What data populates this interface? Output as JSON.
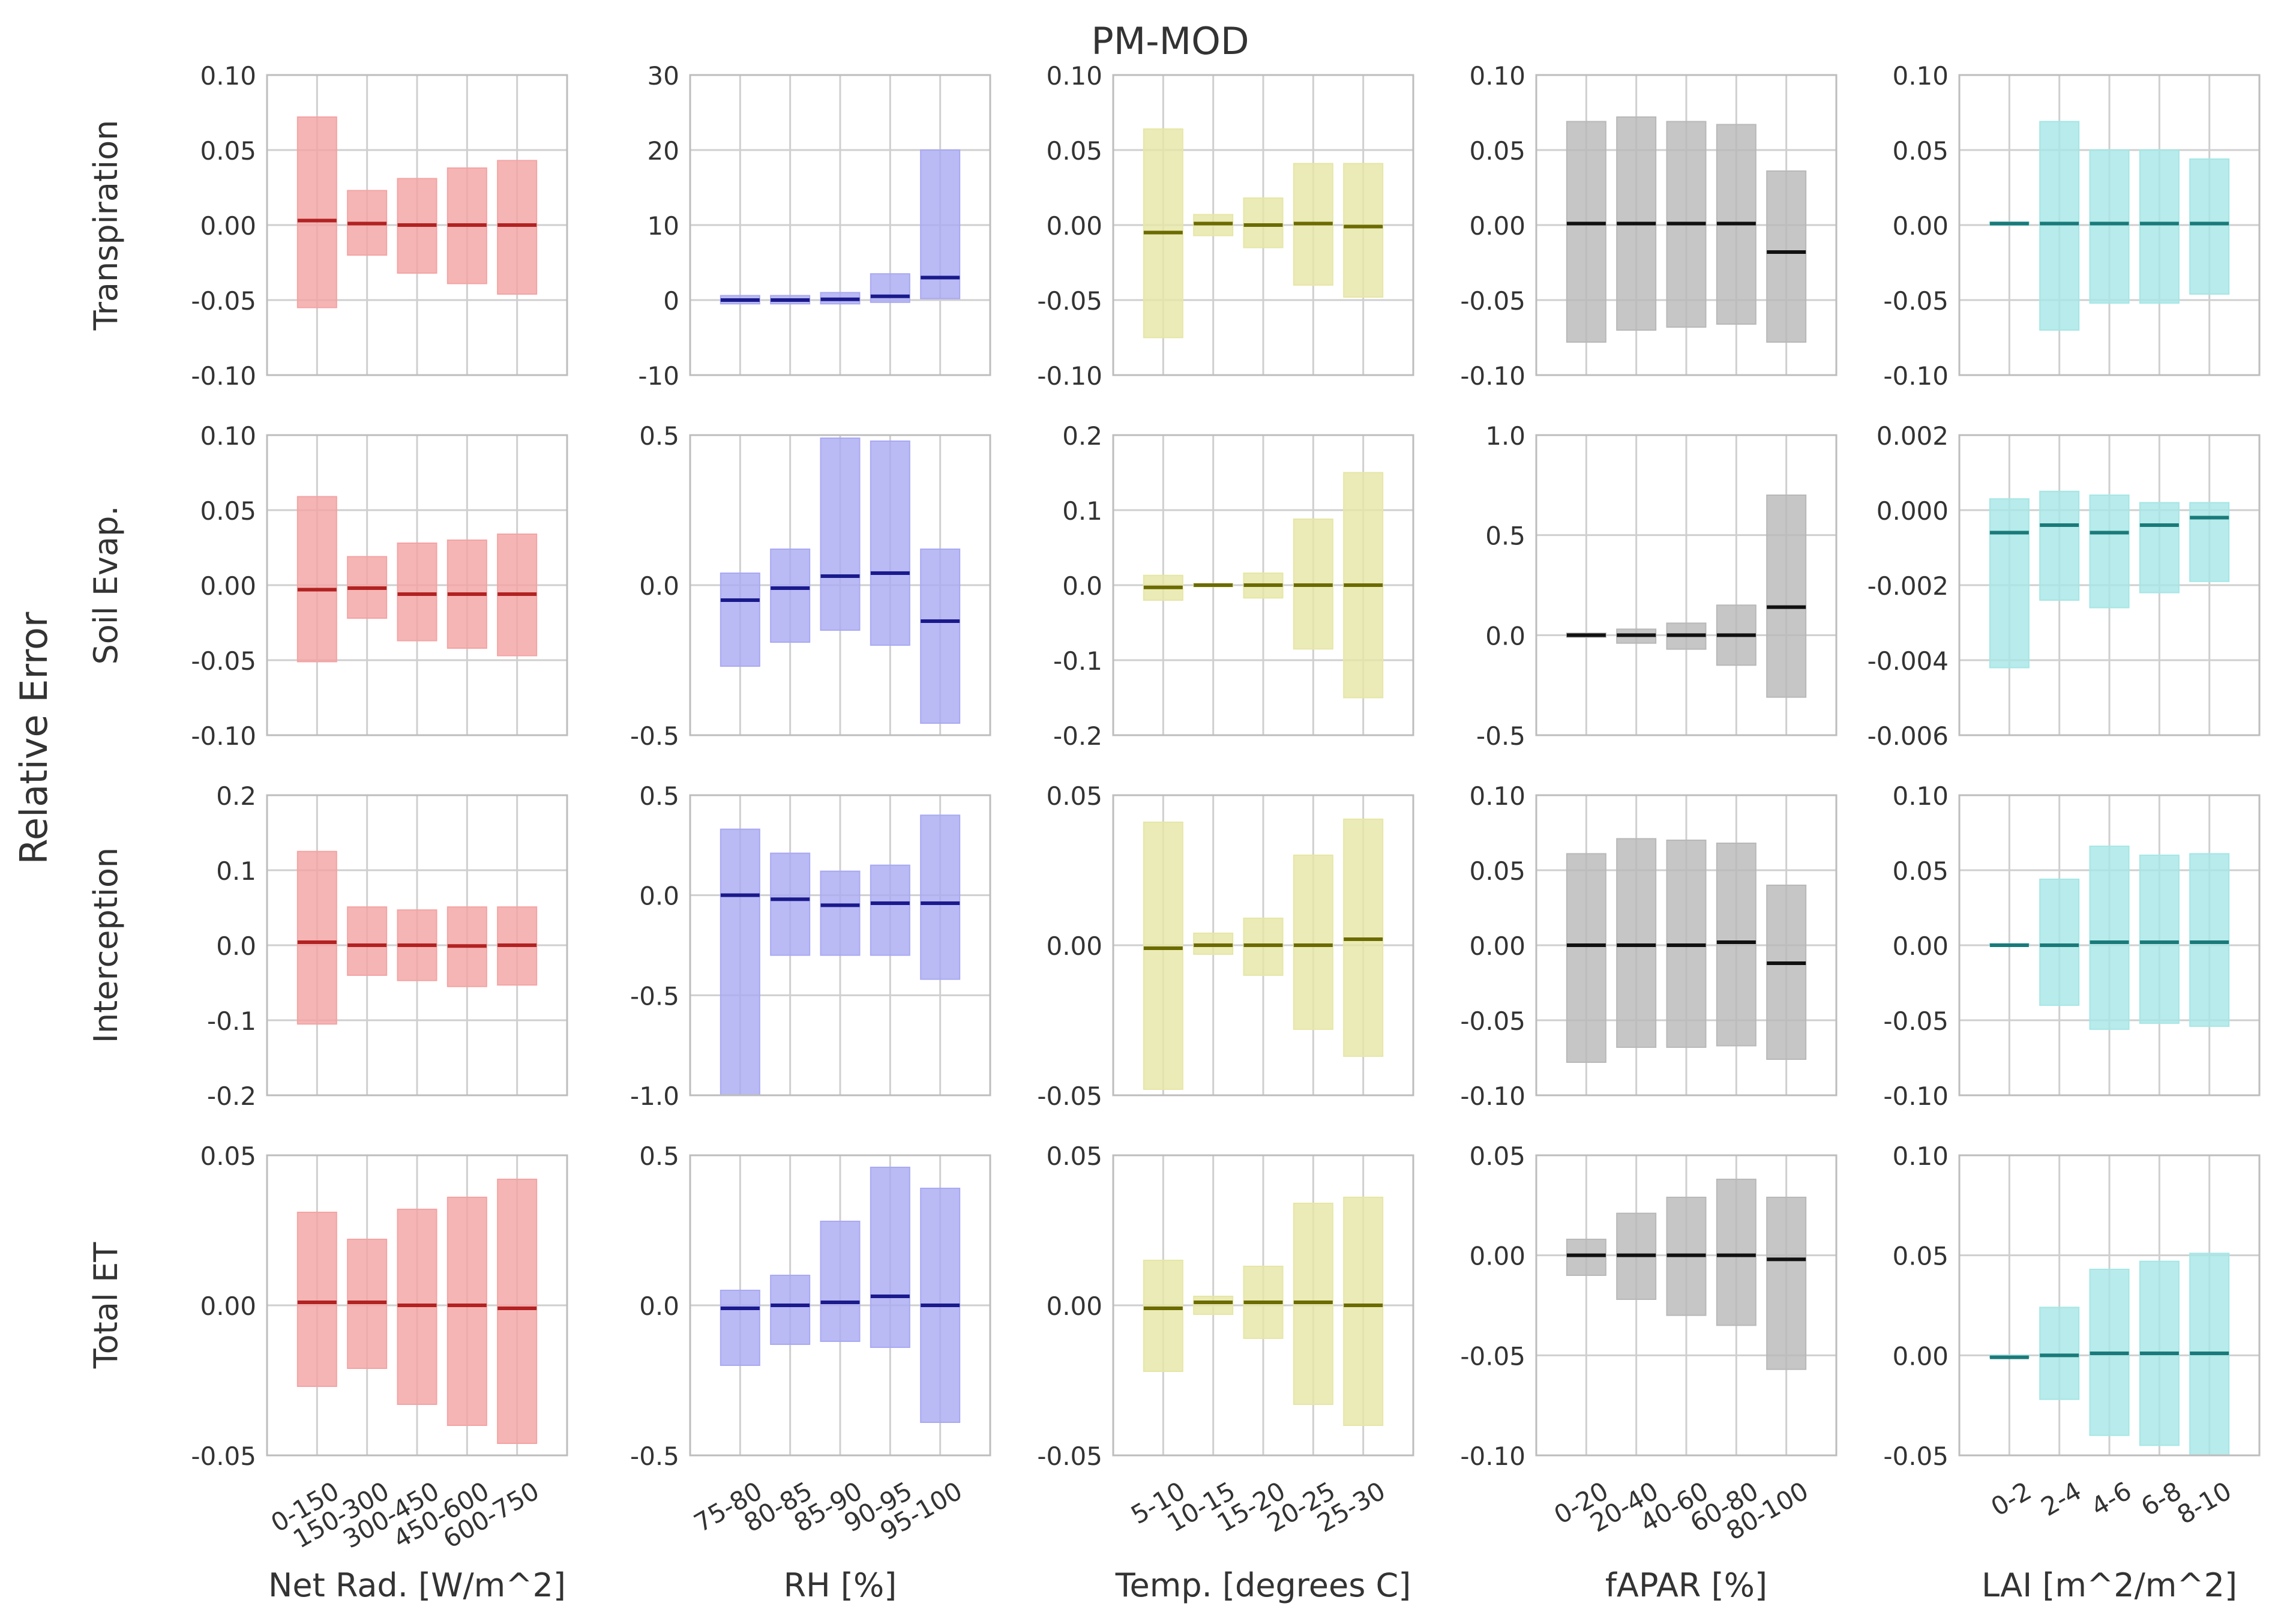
{
  "title": "PM-MOD",
  "ylabel": "Relative Error",
  "rows": [
    "Transpiration",
    "Soil Evap.",
    "Interception",
    "Total ET"
  ],
  "columns": [
    {
      "xlabel": "Net Rad. [W/m^2]",
      "categories": [
        "0-150",
        "150-300",
        "300-450",
        "450-600",
        "600-750"
      ],
      "color": "#f4a3a3",
      "median_color": "#b22222"
    },
    {
      "xlabel": "RH [%]",
      "categories": [
        "75-80",
        "80-85",
        "85-90",
        "90-95",
        "95-100"
      ],
      "color": "#a9a9f2",
      "median_color": "#1a1a8c"
    },
    {
      "xlabel": "Temp. [degrees C]",
      "categories": [
        "5-10",
        "10-15",
        "15-20",
        "20-25",
        "25-30"
      ],
      "color": "#e6e6a6",
      "median_color": "#6b6b00"
    },
    {
      "xlabel": "fAPAR [%]",
      "categories": [
        "0-20",
        "20-40",
        "40-60",
        "60-80",
        "80-100"
      ],
      "color": "#b8b8b8",
      "median_color": "#111111"
    },
    {
      "xlabel": "LAI [m^2/m^2]",
      "categories": [
        "0-2",
        "2-4",
        "4-6",
        "6-8",
        "8-10"
      ],
      "color": "#a6e6e6",
      "median_color": "#1a7a7a"
    }
  ],
  "chart_data": [
    {
      "row": "Transpiration",
      "column": "Net Rad. [W/m^2]",
      "type": "bar",
      "categories": [
        "0-150",
        "150-300",
        "300-450",
        "450-600",
        "600-750"
      ],
      "ylim": [
        -0.1,
        0.1
      ],
      "yticks": [
        -0.1,
        -0.05,
        0,
        0.05,
        0.1
      ],
      "ytick_labels": [
        "-0.10",
        "-0.05",
        "0.00",
        "0.05",
        "0.10"
      ],
      "low": [
        -0.055,
        -0.02,
        -0.032,
        -0.039,
        -0.046
      ],
      "high": [
        0.072,
        0.023,
        0.031,
        0.038,
        0.043
      ],
      "median": [
        0.003,
        0.001,
        0.0,
        0.0,
        0.0
      ]
    },
    {
      "row": "Transpiration",
      "column": "RH [%]",
      "type": "bar",
      "categories": [
        "75-80",
        "80-85",
        "85-90",
        "90-95",
        "95-100"
      ],
      "ylim": [
        -10,
        30
      ],
      "yticks": [
        -10,
        0,
        10,
        20,
        30
      ],
      "ytick_labels": [
        "-10",
        "0",
        "10",
        "20",
        "30"
      ],
      "low": [
        -0.5,
        -0.5,
        -0.5,
        -0.3,
        0.2
      ],
      "high": [
        0.6,
        0.6,
        1.0,
        3.5,
        20.0
      ],
      "median": [
        0.0,
        0.0,
        0.1,
        0.5,
        3.0
      ]
    },
    {
      "row": "Transpiration",
      "column": "Temp. [degrees C]",
      "type": "bar",
      "categories": [
        "5-10",
        "10-15",
        "15-20",
        "20-25",
        "25-30"
      ],
      "ylim": [
        -0.1,
        0.1
      ],
      "yticks": [
        -0.1,
        -0.05,
        0,
        0.05,
        0.1
      ],
      "ytick_labels": [
        "-0.10",
        "-0.05",
        "0.00",
        "0.05",
        "0.10"
      ],
      "low": [
        -0.075,
        -0.007,
        -0.015,
        -0.04,
        -0.048
      ],
      "high": [
        0.064,
        0.007,
        0.018,
        0.041,
        0.041
      ],
      "median": [
        -0.005,
        0.001,
        0.0,
        0.001,
        -0.001
      ]
    },
    {
      "row": "Transpiration",
      "column": "fAPAR [%]",
      "type": "bar",
      "categories": [
        "0-20",
        "20-40",
        "40-60",
        "60-80",
        "80-100"
      ],
      "ylim": [
        -0.1,
        0.1
      ],
      "yticks": [
        -0.1,
        -0.05,
        0,
        0.05,
        0.1
      ],
      "ytick_labels": [
        "-0.10",
        "-0.05",
        "0.00",
        "0.05",
        "0.10"
      ],
      "low": [
        -0.078,
        -0.07,
        -0.068,
        -0.066,
        -0.078
      ],
      "high": [
        0.069,
        0.072,
        0.069,
        0.067,
        0.036
      ],
      "median": [
        0.001,
        0.001,
        0.001,
        0.001,
        -0.018
      ]
    },
    {
      "row": "Transpiration",
      "column": "LAI [m^2/m^2]",
      "type": "bar",
      "categories": [
        "0-2",
        "2-4",
        "4-6",
        "6-8",
        "8-10"
      ],
      "ylim": [
        -0.1,
        0.1
      ],
      "yticks": [
        -0.1,
        -0.05,
        0,
        0.05,
        0.1
      ],
      "ytick_labels": [
        "-0.10",
        "-0.05",
        "0.00",
        "0.05",
        "0.10"
      ],
      "low": [
        0.0,
        -0.07,
        -0.052,
        -0.052,
        -0.046
      ],
      "high": [
        0.002,
        0.069,
        0.05,
        0.05,
        0.044
      ],
      "median": [
        0.001,
        0.001,
        0.001,
        0.001,
        0.001
      ]
    },
    {
      "row": "Soil Evap.",
      "column": "Net Rad. [W/m^2]",
      "type": "bar",
      "categories": [
        "0-150",
        "150-300",
        "300-450",
        "450-600",
        "600-750"
      ],
      "ylim": [
        -0.1,
        0.1
      ],
      "yticks": [
        -0.1,
        -0.05,
        0,
        0.05,
        0.1
      ],
      "ytick_labels": [
        "-0.10",
        "-0.05",
        "0.00",
        "0.05",
        "0.10"
      ],
      "low": [
        -0.051,
        -0.022,
        -0.037,
        -0.042,
        -0.047
      ],
      "high": [
        0.059,
        0.019,
        0.028,
        0.03,
        0.034
      ],
      "median": [
        -0.003,
        -0.002,
        -0.006,
        -0.006,
        -0.006
      ]
    },
    {
      "row": "Soil Evap.",
      "column": "RH [%]",
      "type": "bar",
      "categories": [
        "75-80",
        "80-85",
        "85-90",
        "90-95",
        "95-100"
      ],
      "ylim": [
        -0.5,
        0.5
      ],
      "yticks": [
        -0.5,
        0,
        0.5
      ],
      "ytick_labels": [
        "-0.5",
        "0.0",
        "0.5"
      ],
      "low": [
        -0.27,
        -0.19,
        -0.15,
        -0.2,
        -0.46
      ],
      "high": [
        0.04,
        0.12,
        0.49,
        0.48,
        0.12
      ],
      "median": [
        -0.05,
        -0.01,
        0.03,
        0.04,
        -0.12
      ]
    },
    {
      "row": "Soil Evap.",
      "column": "Temp. [degrees C]",
      "type": "bar",
      "categories": [
        "5-10",
        "10-15",
        "15-20",
        "20-25",
        "25-30"
      ],
      "ylim": [
        -0.2,
        0.2
      ],
      "yticks": [
        -0.2,
        -0.1,
        0,
        0.1,
        0.2
      ],
      "ytick_labels": [
        "-0.2",
        "-0.1",
        "0.0",
        "0.1",
        "0.2"
      ],
      "low": [
        -0.02,
        -0.002,
        -0.017,
        -0.085,
        -0.15
      ],
      "high": [
        0.013,
        0.002,
        0.016,
        0.088,
        0.15
      ],
      "median": [
        -0.003,
        0.0,
        0.0,
        0.0,
        0.0
      ]
    },
    {
      "row": "Soil Evap.",
      "column": "fAPAR [%]",
      "type": "bar",
      "categories": [
        "0-20",
        "20-40",
        "40-60",
        "60-80",
        "80-100"
      ],
      "ylim": [
        -0.5,
        1.0
      ],
      "yticks": [
        -0.5,
        0,
        0.5,
        1.0
      ],
      "ytick_labels": [
        "-0.5",
        "0.0",
        "0.5",
        "1.0"
      ],
      "low": [
        -0.01,
        -0.04,
        -0.07,
        -0.15,
        -0.31
      ],
      "high": [
        0.01,
        0.03,
        0.06,
        0.15,
        0.7
      ],
      "median": [
        0.0,
        0.0,
        0.0,
        0.0,
        0.14
      ]
    },
    {
      "row": "Soil Evap.",
      "column": "LAI [m^2/m^2]",
      "type": "bar",
      "categories": [
        "0-2",
        "2-4",
        "4-6",
        "6-8",
        "8-10"
      ],
      "ylim": [
        -0.006,
        0.002
      ],
      "yticks": [
        -0.006,
        -0.004,
        -0.002,
        0,
        0.002
      ],
      "ytick_labels": [
        "-0.006",
        "-0.004",
        "-0.002",
        "0.000",
        "0.002"
      ],
      "low": [
        -0.0042,
        -0.0024,
        -0.0026,
        -0.0022,
        -0.0019
      ],
      "high": [
        0.0003,
        0.0005,
        0.0004,
        0.0002,
        0.0002
      ],
      "median": [
        -0.0006,
        -0.0004,
        -0.0006,
        -0.0004,
        -0.0002
      ]
    },
    {
      "row": "Interception",
      "column": "Net Rad. [W/m^2]",
      "type": "bar",
      "categories": [
        "0-150",
        "150-300",
        "300-450",
        "450-600",
        "600-750"
      ],
      "ylim": [
        -0.2,
        0.2
      ],
      "yticks": [
        -0.2,
        -0.1,
        0,
        0.1,
        0.2
      ],
      "ytick_labels": [
        "-0.2",
        "-0.1",
        "0.0",
        "0.1",
        "0.2"
      ],
      "low": [
        -0.105,
        -0.04,
        -0.047,
        -0.055,
        -0.053
      ],
      "high": [
        0.125,
        0.051,
        0.047,
        0.051,
        0.051
      ],
      "median": [
        0.004,
        0.0,
        0.0,
        -0.001,
        0.0
      ]
    },
    {
      "row": "Interception",
      "column": "RH [%]",
      "type": "bar",
      "categories": [
        "75-80",
        "80-85",
        "85-90",
        "90-95",
        "95-100"
      ],
      "ylim": [
        -1.0,
        0.5
      ],
      "yticks": [
        -1.0,
        -0.5,
        0,
        0.5
      ],
      "ytick_labels": [
        "-1.0",
        "-0.5",
        "0.0",
        "0.5"
      ],
      "low": [
        -1.0,
        -0.3,
        -0.3,
        -0.3,
        -0.42
      ],
      "high": [
        0.33,
        0.21,
        0.12,
        0.15,
        0.4
      ],
      "median": [
        0.0,
        -0.02,
        -0.05,
        -0.04,
        -0.04
      ]
    },
    {
      "row": "Interception",
      "column": "Temp. [degrees C]",
      "type": "bar",
      "categories": [
        "5-10",
        "10-15",
        "15-20",
        "20-25",
        "25-30"
      ],
      "ylim": [
        -0.05,
        0.05
      ],
      "yticks": [
        -0.05,
        0,
        0.05
      ],
      "ytick_labels": [
        "-0.05",
        "0.00",
        "0.05"
      ],
      "low": [
        -0.048,
        -0.003,
        -0.01,
        -0.028,
        -0.037
      ],
      "high": [
        0.041,
        0.004,
        0.009,
        0.03,
        0.042
      ],
      "median": [
        -0.001,
        0.0,
        0.0,
        0.0,
        0.002
      ]
    },
    {
      "row": "Interception",
      "column": "fAPAR [%]",
      "type": "bar",
      "categories": [
        "0-20",
        "20-40",
        "40-60",
        "60-80",
        "80-100"
      ],
      "ylim": [
        -0.1,
        0.1
      ],
      "yticks": [
        -0.1,
        -0.05,
        0,
        0.05,
        0.1
      ],
      "ytick_labels": [
        "-0.10",
        "-0.05",
        "0.00",
        "0.05",
        "0.10"
      ],
      "low": [
        -0.078,
        -0.068,
        -0.068,
        -0.067,
        -0.076
      ],
      "high": [
        0.061,
        0.071,
        0.07,
        0.068,
        0.04
      ],
      "median": [
        0.0,
        0.0,
        0.0,
        0.002,
        -0.012
      ]
    },
    {
      "row": "Interception",
      "column": "LAI [m^2/m^2]",
      "type": "bar",
      "categories": [
        "0-2",
        "2-4",
        "4-6",
        "6-8",
        "8-10"
      ],
      "ylim": [
        -0.1,
        0.1
      ],
      "yticks": [
        -0.1,
        -0.05,
        0,
        0.05,
        0.1
      ],
      "ytick_labels": [
        "-0.10",
        "-0.05",
        "0.00",
        "0.05",
        "0.10"
      ],
      "low": [
        0.0,
        -0.04,
        -0.056,
        -0.052,
        -0.054
      ],
      "high": [
        0.001,
        0.044,
        0.066,
        0.06,
        0.061
      ],
      "median": [
        0.0,
        0.0,
        0.002,
        0.002,
        0.002
      ]
    },
    {
      "row": "Total ET",
      "column": "Net Rad. [W/m^2]",
      "type": "bar",
      "categories": [
        "0-150",
        "150-300",
        "300-450",
        "450-600",
        "600-750"
      ],
      "ylim": [
        -0.05,
        0.05
      ],
      "yticks": [
        -0.05,
        0,
        0.05
      ],
      "ytick_labels": [
        "-0.05",
        "0.00",
        "0.05"
      ],
      "low": [
        -0.027,
        -0.021,
        -0.033,
        -0.04,
        -0.046
      ],
      "high": [
        0.031,
        0.022,
        0.032,
        0.036,
        0.042
      ],
      "median": [
        0.001,
        0.001,
        0.0,
        0.0,
        -0.001
      ]
    },
    {
      "row": "Total ET",
      "column": "RH [%]",
      "type": "bar",
      "categories": [
        "75-80",
        "80-85",
        "85-90",
        "90-95",
        "95-100"
      ],
      "ylim": [
        -0.5,
        0.5
      ],
      "yticks": [
        -0.5,
        0,
        0.5
      ],
      "ytick_labels": [
        "-0.5",
        "0.0",
        "0.5"
      ],
      "low": [
        -0.2,
        -0.13,
        -0.12,
        -0.14,
        -0.39
      ],
      "high": [
        0.05,
        0.1,
        0.28,
        0.46,
        0.39
      ],
      "median": [
        -0.01,
        0.0,
        0.01,
        0.03,
        0.0
      ]
    },
    {
      "row": "Total ET",
      "column": "Temp. [degrees C]",
      "type": "bar",
      "categories": [
        "5-10",
        "10-15",
        "15-20",
        "20-25",
        "25-30"
      ],
      "ylim": [
        -0.05,
        0.05
      ],
      "yticks": [
        -0.05,
        0,
        0.05
      ],
      "ytick_labels": [
        "-0.05",
        "0.00",
        "0.05"
      ],
      "low": [
        -0.022,
        -0.003,
        -0.011,
        -0.033,
        -0.04
      ],
      "high": [
        0.015,
        0.003,
        0.013,
        0.034,
        0.036
      ],
      "median": [
        -0.001,
        0.001,
        0.001,
        0.001,
        0.0
      ]
    },
    {
      "row": "Total ET",
      "column": "fAPAR [%]",
      "type": "bar",
      "categories": [
        "0-20",
        "20-40",
        "40-60",
        "60-80",
        "80-100"
      ],
      "ylim": [
        -0.1,
        0.05
      ],
      "yticks": [
        -0.1,
        -0.05,
        0,
        0.05
      ],
      "ytick_labels": [
        "-0.10",
        "-0.05",
        "0.00",
        "0.05"
      ],
      "low": [
        -0.01,
        -0.022,
        -0.03,
        -0.035,
        -0.057
      ],
      "high": [
        0.008,
        0.021,
        0.029,
        0.038,
        0.029
      ],
      "median": [
        0.0,
        0.0,
        0.0,
        0.0,
        -0.002
      ]
    },
    {
      "row": "Total ET",
      "column": "LAI [m^2/m^2]",
      "type": "bar",
      "categories": [
        "0-2",
        "2-4",
        "4-6",
        "6-8",
        "8-10"
      ],
      "ylim": [
        -0.05,
        0.1
      ],
      "yticks": [
        -0.05,
        0,
        0.05,
        0.1
      ],
      "ytick_labels": [
        "-0.05",
        "0.00",
        "0.05",
        "0.10"
      ],
      "low": [
        -0.001,
        -0.022,
        -0.04,
        -0.045,
        -0.05
      ],
      "high": [
        0.0,
        0.024,
        0.043,
        0.047,
        0.051
      ],
      "median": [
        -0.001,
        0.0,
        0.001,
        0.001,
        0.001
      ]
    }
  ]
}
